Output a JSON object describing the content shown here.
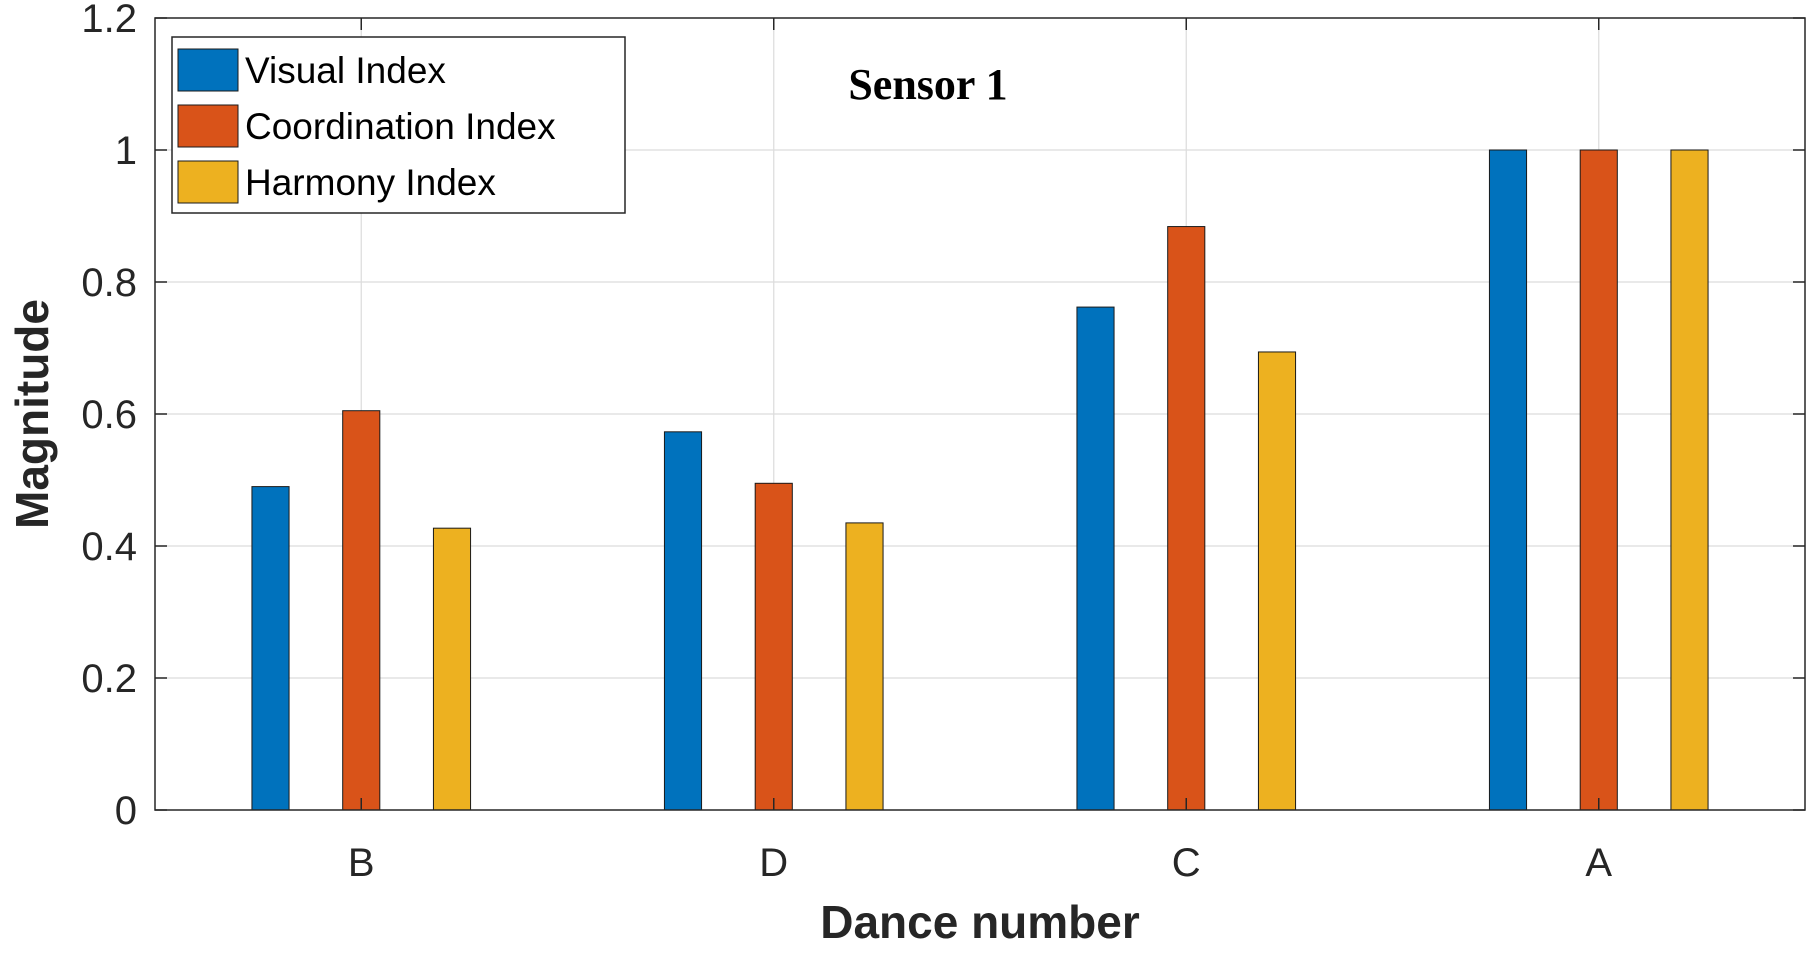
{
  "chart_data": {
    "type": "bar",
    "categories": [
      "B",
      "D",
      "C",
      "A"
    ],
    "series": [
      {
        "name": "Visual Index",
        "values": [
          0.49,
          0.573,
          0.762,
          1.0
        ],
        "color": "#0072BD"
      },
      {
        "name": "Coordination Index",
        "values": [
          0.605,
          0.495,
          0.884,
          1.0
        ],
        "color": "#D95319"
      },
      {
        "name": "Harmony Index",
        "values": [
          0.427,
          0.435,
          0.694,
          1.0
        ],
        "color": "#EDB120"
      }
    ],
    "title": "",
    "annotation": "Sensor 1",
    "xlabel": "Dance number",
    "ylabel": "Magnitude",
    "ylim": [
      0,
      1.2
    ],
    "yticks": [
      0,
      0.2,
      0.4,
      0.6,
      0.8,
      1,
      1.2
    ],
    "ytick_labels": [
      "0",
      "0.2",
      "0.4",
      "0.6",
      "0.8",
      "1",
      "1.2"
    ],
    "grid": true,
    "legend_position": "top-left"
  }
}
